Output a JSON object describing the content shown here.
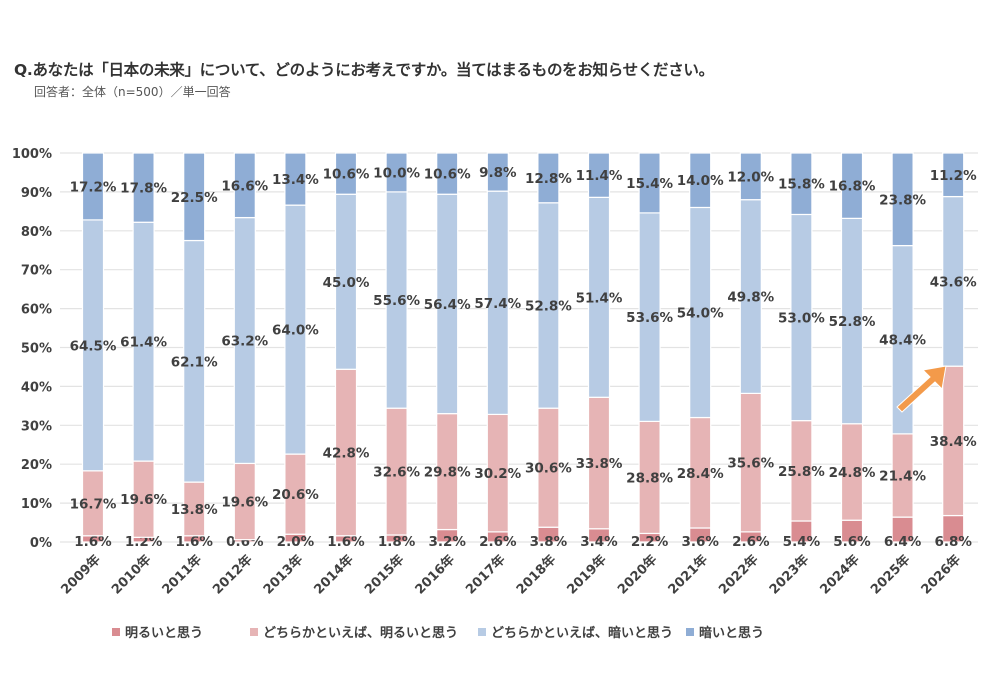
{
  "title": "Q.あなたは「日本の未来」について、どのようにお考えですか。当てはまるものをお知らせください。",
  "subtitle": "回答者：全体（n=500）／単一回答",
  "chart_data": {
    "type": "bar",
    "stacked": true,
    "percent": true,
    "title": "Q.あなたは「日本の未来」について、どのようにお考えですか。当てはまるものをお知らせください。",
    "xlabel": "",
    "ylabel": "",
    "ylim": [
      0,
      100
    ],
    "yticks": [
      "0%",
      "10%",
      "20%",
      "30%",
      "40%",
      "50%",
      "60%",
      "70%",
      "80%",
      "90%",
      "100%"
    ],
    "grid": true,
    "legend_position": "bottom",
    "categories": [
      "2009年",
      "2010年",
      "2011年",
      "2012年",
      "2013年",
      "2014年",
      "2015年",
      "2016年",
      "2017年",
      "2018年",
      "2019年",
      "2020年",
      "2021年",
      "2022年",
      "2023年",
      "2024年",
      "2025年",
      "2026年"
    ],
    "series": [
      {
        "name": "明るいと思う",
        "color": "#d98c91",
        "values": [
          1.6,
          1.2,
          1.6,
          0.6,
          2.0,
          1.6,
          1.8,
          3.2,
          2.6,
          3.8,
          3.4,
          2.2,
          3.6,
          2.6,
          5.4,
          5.6,
          6.4,
          6.8
        ]
      },
      {
        "name": "どちらかといえば、明るいと思う",
        "color": "#e6b4b5",
        "values": [
          16.7,
          19.6,
          13.8,
          19.6,
          20.6,
          42.8,
          32.6,
          29.8,
          30.2,
          30.6,
          33.8,
          28.8,
          28.4,
          35.6,
          25.8,
          24.8,
          21.4,
          38.4
        ]
      },
      {
        "name": "どちらかといえば、暗いと思う",
        "color": "#b7cbe4",
        "values": [
          64.5,
          61.4,
          62.1,
          63.2,
          64.0,
          45.0,
          55.6,
          56.4,
          57.4,
          52.8,
          51.4,
          53.6,
          54.0,
          49.8,
          53.0,
          52.8,
          48.4,
          43.6
        ]
      },
      {
        "name": "暗いと思う",
        "color": "#8fadd5",
        "values": [
          17.2,
          17.8,
          22.5,
          16.6,
          13.4,
          10.6,
          10.0,
          10.6,
          9.8,
          12.8,
          11.4,
          15.4,
          14.0,
          12.0,
          15.8,
          16.8,
          23.8,
          11.2
        ]
      }
    ],
    "annotations": [
      {
        "type": "arrow",
        "color": "#f39a4a",
        "target": "2026年"
      }
    ]
  }
}
